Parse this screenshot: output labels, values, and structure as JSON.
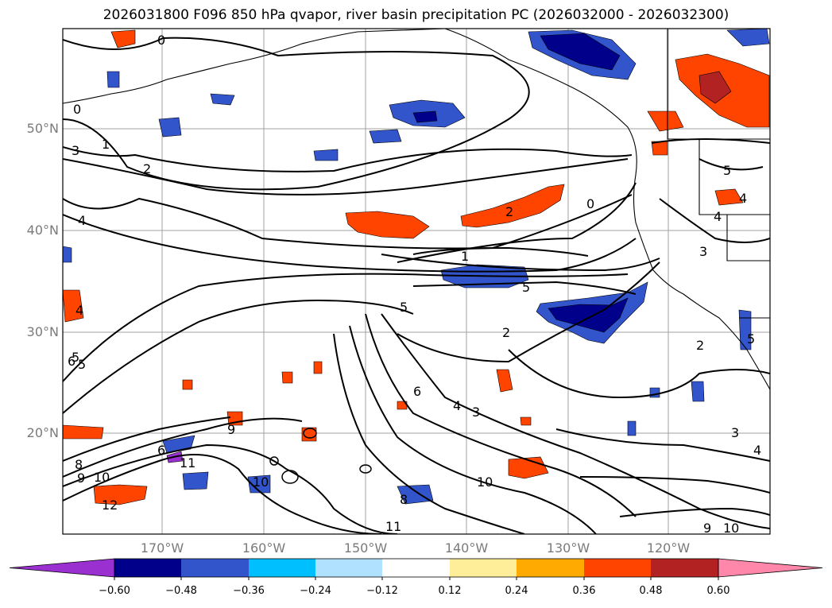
{
  "title": "2026031800 F096 850 hPa qvapor, river basin precipitation PC (2026032000 - 2026032300)",
  "lat_labels": [
    "50°N",
    "40°N",
    "30°N",
    "20°N"
  ],
  "lon_labels": [
    "170°W",
    "160°W",
    "150°W",
    "140°W",
    "130°W",
    "120°W"
  ],
  "colorbar": {
    "ticks": [
      "−0.60",
      "−0.48",
      "−0.36",
      "−0.24",
      "−0.12",
      "0.12",
      "0.24",
      "0.36",
      "0.48",
      "0.60"
    ],
    "colors": [
      "#9b30d0",
      "#00008b",
      "#3355cc",
      "#00bfff",
      "#b0e2ff",
      "#ffffff",
      "#ffee99",
      "#ffaa00",
      "#ff4400",
      "#b22222",
      "#ff88aa",
      "#ff88aa"
    ]
  },
  "contour_labels": [
    "0",
    "0",
    "1",
    "2",
    "3",
    "4",
    "5",
    "1",
    "2",
    "0",
    "5",
    "5",
    "2",
    "6",
    "4",
    "3",
    "6",
    "5",
    "4",
    "9",
    "6",
    "11",
    "8",
    "10",
    "12",
    "9",
    "10",
    "10",
    "11",
    "8",
    "9",
    "10",
    "2",
    "3",
    "4",
    "5",
    "4",
    "3",
    "4",
    "5"
  ],
  "shading_colors": {
    "negative_dark": "#00008b",
    "negative_mid": "#3355cc",
    "negative_light": "#00bfff",
    "positive_light": "#ffaa00",
    "positive_mid": "#ff4400",
    "positive_dark": "#b22222"
  }
}
